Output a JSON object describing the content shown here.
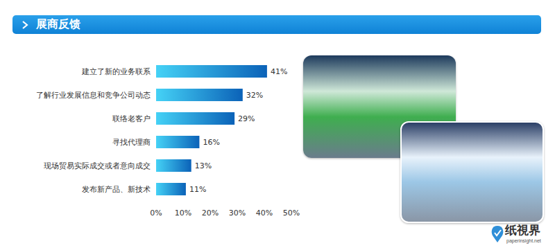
{
  "header": {
    "title": "展商反馈"
  },
  "chart_data": {
    "type": "bar",
    "orientation": "horizontal",
    "categories": [
      "建立了新的业务联系",
      "了解行业发展信息和竞争公司动态",
      "联络老客户",
      "寻找代理商",
      "现场贸易实际成交或者意向成交",
      "发布新产品、新技术"
    ],
    "values": [
      41,
      32,
      29,
      16,
      13,
      11
    ],
    "value_labels": [
      "41%",
      "32%",
      "29%",
      "16%",
      "13%",
      "11%"
    ],
    "color": "#0b62b8",
    "xlim": [
      0,
      50
    ],
    "xticks": [
      {
        "value": 0,
        "label": "0%"
      },
      {
        "value": 10,
        "label": "10%"
      },
      {
        "value": 20,
        "label": "20%"
      },
      {
        "value": 30,
        "label": "30%"
      },
      {
        "value": 40,
        "label": "40%"
      },
      {
        "value": 50,
        "label": "50%"
      }
    ],
    "grid": false,
    "data_labels": true
  },
  "watermark": {
    "name": "纸視界",
    "url": "paperinsight.net"
  }
}
